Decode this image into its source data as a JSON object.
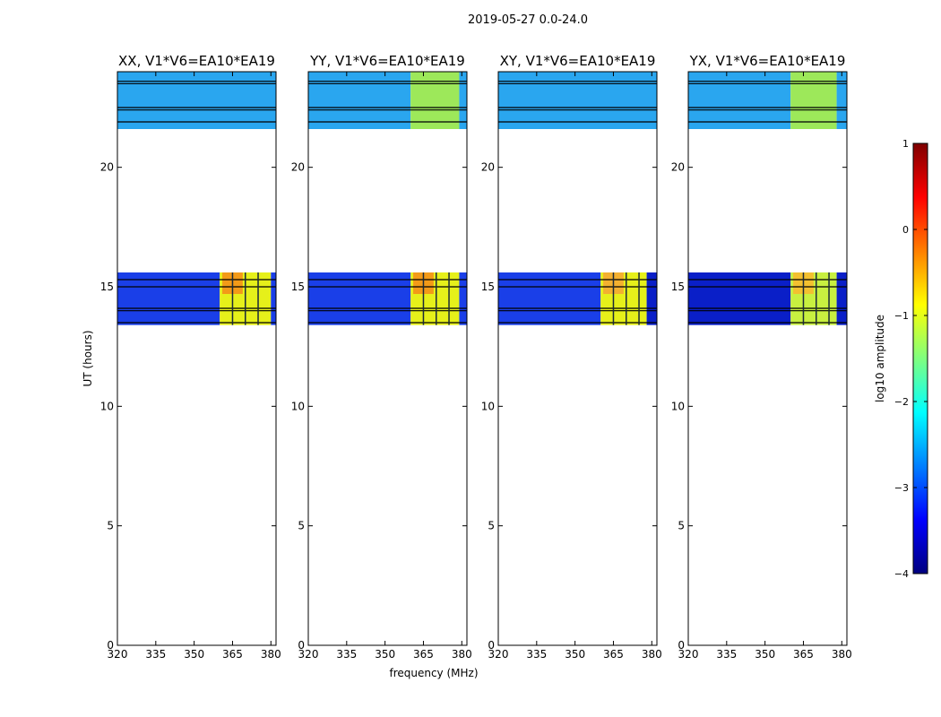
{
  "figure": {
    "suptitle": "2019-05-27 0.0-24.0",
    "ylabel": "UT (hours)",
    "xlabel": "frequency (MHz)"
  },
  "chart_data": {
    "type": "heatmap",
    "xlim": [
      320,
      382
    ],
    "ylim": [
      0,
      24
    ],
    "xticks": [
      "320",
      "335",
      "350",
      "365",
      "380"
    ],
    "xtick_values": [
      320,
      335,
      350,
      365,
      380
    ],
    "yticks": [
      "0",
      "5",
      "10",
      "15",
      "20"
    ],
    "ytick_values": [
      0,
      5,
      10,
      15,
      20
    ],
    "panels": [
      {
        "title": "XX, V1*V6=EA10*EA19",
        "show_xticklabels": true,
        "blocks": [
          {
            "t0": 21.6,
            "t1": 24.0,
            "f0": 320,
            "f1": 382,
            "color": "#2aa6ef"
          },
          {
            "t0": 13.4,
            "t1": 15.6,
            "f0": 320,
            "f1": 360,
            "color": "#1a3fe8"
          },
          {
            "t0": 13.4,
            "t1": 15.6,
            "f0": 360,
            "f1": 380,
            "color": "#e6f01a"
          },
          {
            "t0": 14.7,
            "t1": 15.6,
            "f0": 361,
            "f1": 369,
            "color": "#f39a18"
          },
          {
            "t0": 13.4,
            "t1": 15.6,
            "f0": 380,
            "f1": 382,
            "color": "#1a3fe8"
          }
        ]
      },
      {
        "title": "YY, V1*V6=EA10*EA19",
        "show_xticklabels": true,
        "blocks": [
          {
            "t0": 21.6,
            "t1": 24.0,
            "f0": 320,
            "f1": 360,
            "color": "#2aa6ef"
          },
          {
            "t0": 21.6,
            "t1": 24.0,
            "f0": 360,
            "f1": 379,
            "color": "#9de85a"
          },
          {
            "t0": 21.6,
            "t1": 24.0,
            "f0": 379,
            "f1": 382,
            "color": "#2aa6ef"
          },
          {
            "t0": 13.4,
            "t1": 15.6,
            "f0": 320,
            "f1": 360,
            "color": "#1a3fe8"
          },
          {
            "t0": 13.4,
            "t1": 15.6,
            "f0": 360,
            "f1": 379,
            "color": "#e6f01a"
          },
          {
            "t0": 14.7,
            "t1": 15.6,
            "f0": 361,
            "f1": 369,
            "color": "#f39a18"
          },
          {
            "t0": 13.4,
            "t1": 15.6,
            "f0": 379,
            "f1": 382,
            "color": "#1a3fe8"
          }
        ]
      },
      {
        "title": "XY, V1*V6=EA10*EA19",
        "show_xticklabels": true,
        "blocks": [
          {
            "t0": 21.6,
            "t1": 24.0,
            "f0": 320,
            "f1": 382,
            "color": "#2aa6ef"
          },
          {
            "t0": 13.4,
            "t1": 15.6,
            "f0": 320,
            "f1": 360,
            "color": "#1a3fe8"
          },
          {
            "t0": 13.4,
            "t1": 15.6,
            "f0": 360,
            "f1": 378,
            "color": "#e6f01a"
          },
          {
            "t0": 14.7,
            "t1": 15.6,
            "f0": 361,
            "f1": 369,
            "color": "#f3b030"
          },
          {
            "t0": 13.4,
            "t1": 15.6,
            "f0": 378,
            "f1": 382,
            "color": "#0a1fc8"
          }
        ]
      },
      {
        "title": "YX, V1*V6=EA10*EA19",
        "show_xticklabels": true,
        "blocks": [
          {
            "t0": 21.6,
            "t1": 24.0,
            "f0": 320,
            "f1": 360,
            "color": "#2aa6ef"
          },
          {
            "t0": 21.6,
            "t1": 24.0,
            "f0": 360,
            "f1": 378,
            "color": "#9de85a"
          },
          {
            "t0": 21.6,
            "t1": 24.0,
            "f0": 378,
            "f1": 382,
            "color": "#2aa6ef"
          },
          {
            "t0": 13.4,
            "t1": 15.6,
            "f0": 320,
            "f1": 360,
            "color": "#0a1fc8"
          },
          {
            "t0": 13.4,
            "t1": 15.6,
            "f0": 360,
            "f1": 378,
            "color": "#c8f040"
          },
          {
            "t0": 14.7,
            "t1": 15.6,
            "f0": 361,
            "f1": 369,
            "color": "#f3c030"
          },
          {
            "t0": 13.4,
            "t1": 15.6,
            "f0": 378,
            "f1": 382,
            "color": "#0a1fc8"
          }
        ]
      }
    ],
    "flag_lines_ut": [
      23.6,
      23.5,
      22.5,
      22.4,
      21.9,
      15.3,
      15.0,
      14.1,
      14.0,
      13.5
    ],
    "flag_lines_freq": [
      365,
      370,
      375
    ],
    "colorbar": {
      "label": "log10 amplitude",
      "range": [
        -4,
        1
      ],
      "ticks": [
        "−4",
        "−3",
        "−2",
        "−1",
        "0",
        "1"
      ],
      "tick_values": [
        -4,
        -3,
        -2,
        -1,
        0,
        1
      ],
      "colormap_stops": [
        "#00007f",
        "#0000ff",
        "#007fff",
        "#00ffff",
        "#7fff7f",
        "#ffff00",
        "#ff7f00",
        "#ff0000",
        "#7f0000"
      ]
    }
  }
}
